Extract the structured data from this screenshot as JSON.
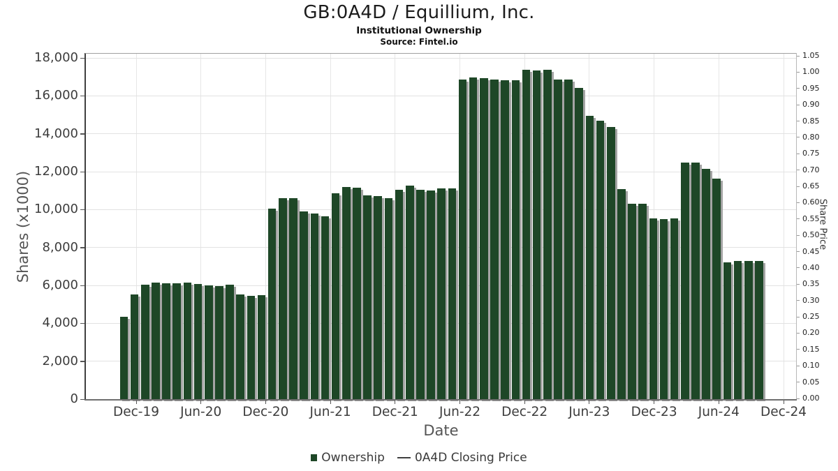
{
  "header": {
    "title": "GB:0A4D / Equillium, Inc.",
    "subtitle": "Institutional Ownership",
    "source": "Source: Fintel.io"
  },
  "chart_data": {
    "type": "bar",
    "title": "GB:0A4D / Equillium, Inc.",
    "subtitle": "Institutional Ownership",
    "source": "Source: Fintel.io",
    "xlabel": "Date",
    "ylabel_left": "Shares (x1000)",
    "ylabel_right": "Share Price",
    "grid": true,
    "legend_position": "bottom",
    "bar_color": "#1e4727",
    "bar_shadow_color": "#a4a4a4",
    "y_axis_left": {
      "min": 0,
      "max": 18000,
      "tick_step": 2000
    },
    "y_axis_right": {
      "min": 0.0,
      "max": 1.05,
      "tick_step": 0.05
    },
    "x_tick_labels": [
      "Dec-19",
      "Jun-20",
      "Dec-20",
      "Jun-21",
      "Dec-21",
      "Jun-22",
      "Dec-22",
      "Jun-23",
      "Dec-23",
      "Jun-24",
      "Dec-24"
    ],
    "categories": [
      "Nov-19",
      "Dec-19",
      "Jan-20",
      "Feb-20",
      "Mar-20",
      "Apr-20",
      "May-20",
      "Jun-20",
      "Jul-20",
      "Aug-20",
      "Sep-20",
      "Oct-20",
      "Nov-20",
      "Dec-20",
      "Jan-21",
      "Feb-21",
      "Mar-21",
      "Apr-21",
      "May-21",
      "Jun-21",
      "Jul-21",
      "Aug-21",
      "Sep-21",
      "Oct-21",
      "Nov-21",
      "Dec-21",
      "Jan-22",
      "Feb-22",
      "Mar-22",
      "Apr-22",
      "May-22",
      "Jun-22",
      "Jul-22",
      "Aug-22",
      "Sep-22",
      "Oct-22",
      "Nov-22",
      "Dec-22",
      "Jan-23",
      "Feb-23",
      "Mar-23",
      "Apr-23",
      "May-23",
      "Jun-23",
      "Jul-23",
      "Aug-23",
      "Sep-23",
      "Oct-23",
      "Nov-23",
      "Dec-23",
      "Jan-24",
      "Feb-24",
      "Mar-24",
      "Apr-24",
      "May-24",
      "Jun-24",
      "Jul-24",
      "Aug-24",
      "Sep-24",
      "Oct-24",
      "Nov-24"
    ],
    "series": [
      {
        "name": "Ownership",
        "type": "bar",
        "color": "#1e4727",
        "values": [
          4350,
          5520,
          6040,
          6150,
          6110,
          6110,
          6130,
          6090,
          6000,
          5960,
          6030,
          5510,
          5460,
          5480,
          10040,
          10590,
          10600,
          9890,
          9790,
          9640,
          10870,
          11180,
          11140,
          10750,
          10710,
          10590,
          11050,
          11260,
          11030,
          11010,
          11120,
          11120,
          16850,
          16970,
          16940,
          16850,
          16820,
          16820,
          17360,
          17340,
          17380,
          16850,
          16850,
          16430,
          14940,
          14700,
          14340,
          11080,
          10320,
          10320,
          9550,
          9500,
          9520,
          12490,
          12490,
          12140,
          11640,
          7230,
          7290,
          7290,
          7290
        ]
      },
      {
        "name": "0A4D Closing Price",
        "type": "line",
        "color": "#3f3f3f",
        "values": []
      }
    ]
  },
  "legend": {
    "items": [
      {
        "label": "Ownership"
      },
      {
        "label": "0A4D Closing Price"
      }
    ]
  }
}
